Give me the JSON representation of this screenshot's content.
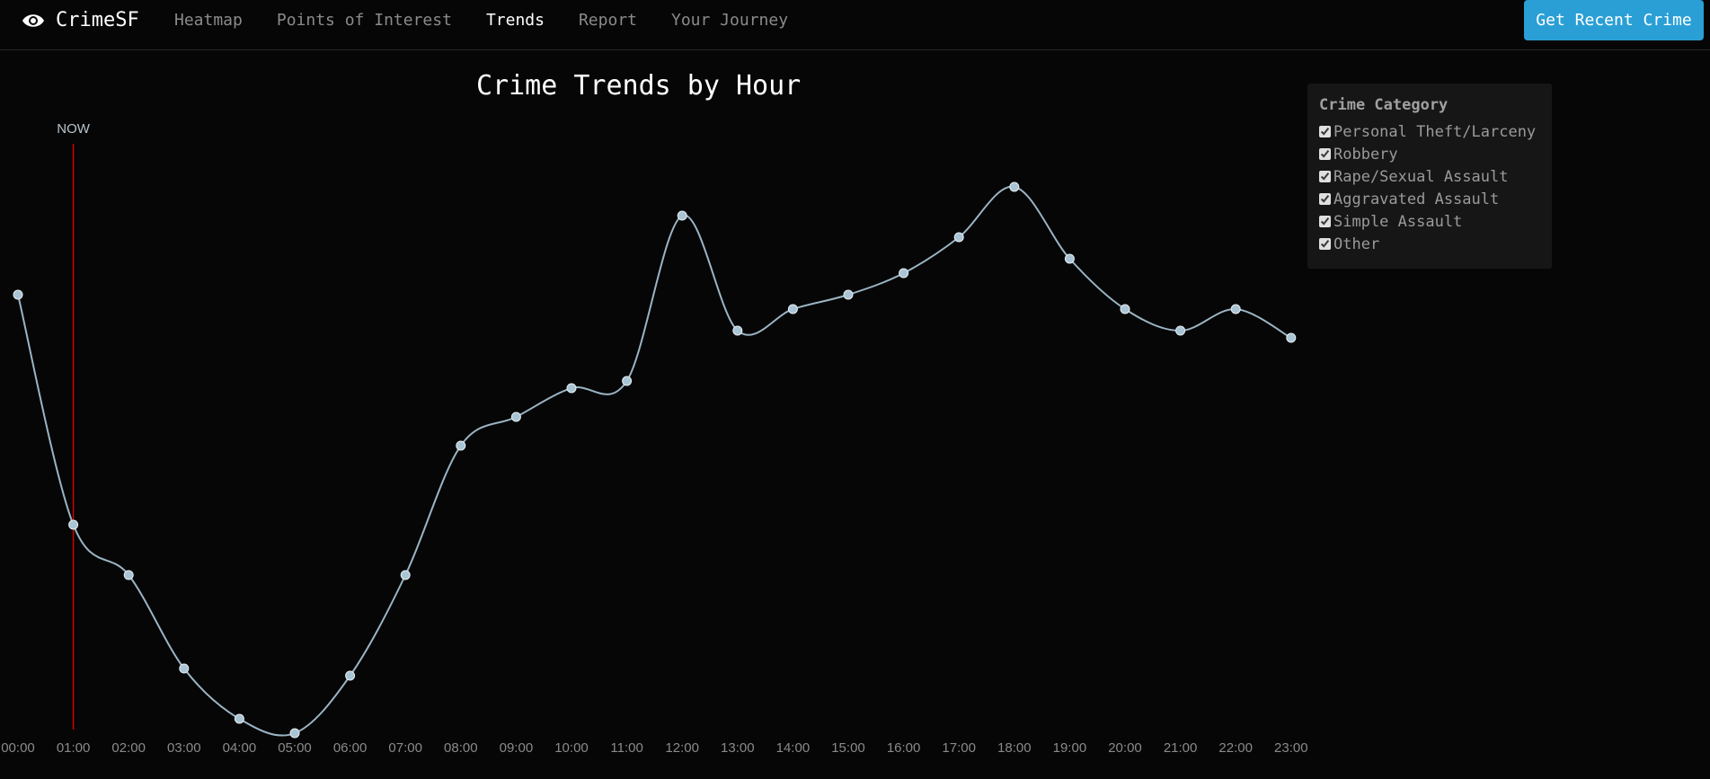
{
  "nav": {
    "brand": "CrimeSF",
    "links": [
      "Heatmap",
      "Points of Interest",
      "Trends",
      "Report",
      "Your Journey"
    ],
    "active": "Trends",
    "recent_button": "Get Recent Crime"
  },
  "colors": {
    "accent": "#2a9fd6",
    "line": "#9ab4c4",
    "now_marker": "#cc0000",
    "background": "#060606"
  },
  "legend": {
    "title": "Crime Category",
    "items": [
      {
        "label": "Personal Theft/Larceny",
        "checked": true
      },
      {
        "label": "Robbery",
        "checked": true
      },
      {
        "label": "Rape/Sexual Assault",
        "checked": true
      },
      {
        "label": "Aggravated Assault",
        "checked": true
      },
      {
        "label": "Simple Assault",
        "checked": true
      },
      {
        "label": "Other",
        "checked": true
      }
    ]
  },
  "chart_data": {
    "type": "line",
    "title": "Crime Trends by Hour",
    "x": [
      "00:00",
      "01:00",
      "02:00",
      "03:00",
      "04:00",
      "05:00",
      "06:00",
      "07:00",
      "08:00",
      "09:00",
      "10:00",
      "11:00",
      "12:00",
      "13:00",
      "14:00",
      "15:00",
      "16:00",
      "17:00",
      "18:00",
      "19:00",
      "20:00",
      "21:00",
      "22:00",
      "23:00"
    ],
    "values": [
      74,
      42,
      35,
      22,
      15,
      13,
      21,
      35,
      53,
      57,
      61,
      62,
      85,
      69,
      72,
      74,
      77,
      82,
      89,
      79,
      72,
      69,
      72,
      68
    ],
    "ylim": [
      0,
      100
    ],
    "now_marker": {
      "label": "NOW",
      "x": "01:00"
    },
    "grid": false,
    "legend_position": "top-right"
  }
}
